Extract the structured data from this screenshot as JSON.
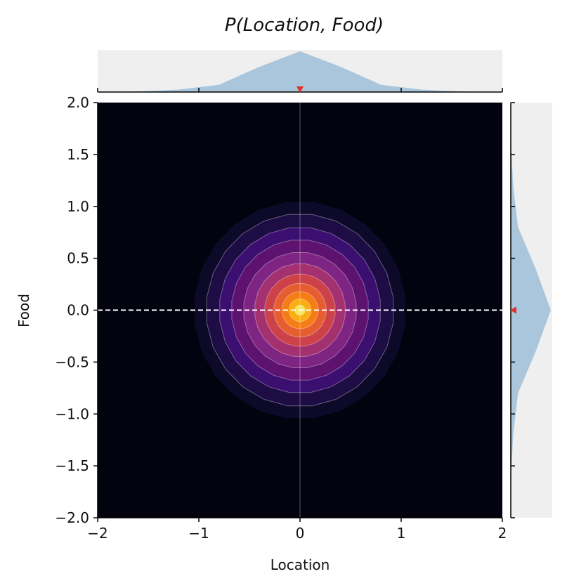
{
  "chart_data": {
    "type": "heatmap",
    "title": "P(Location, Food)",
    "xlabel": "Location",
    "ylabel": "Food",
    "xlim": [
      -2,
      2
    ],
    "ylim": [
      -2,
      2
    ],
    "xticks": [
      "−2",
      "−1",
      "0",
      "1",
      "2"
    ],
    "xtick_values": [
      -2,
      -1,
      0,
      1,
      2
    ],
    "yticks": [
      "2.0",
      "1.5",
      "1.0",
      "0.5",
      "0.0",
      "−0.5",
      "−1.0",
      "−1.5",
      "−2.0"
    ],
    "ytick_values": [
      2.0,
      1.5,
      1.0,
      0.5,
      0.0,
      -0.5,
      -1.0,
      -1.5,
      -2.0
    ],
    "colormap": "inferno",
    "marker": {
      "x": 0.0,
      "y": 0.0
    },
    "crosshair": {
      "vertical_x": 0.0,
      "horizontal_y": 0.0
    },
    "contour_levels": [
      {
        "radius": 1.05,
        "color": "#0d0a29"
      },
      {
        "radius": 0.93,
        "color": "#1e0c45"
      },
      {
        "radius": 0.8,
        "color": "#3b0f70"
      },
      {
        "radius": 0.68,
        "color": "#5c126e"
      },
      {
        "radius": 0.56,
        "color": "#7e2482"
      },
      {
        "radius": 0.45,
        "color": "#a3306f"
      },
      {
        "radius": 0.35,
        "color": "#cc4248"
      },
      {
        "radius": 0.26,
        "color": "#e65d2f"
      },
      {
        "radius": 0.18,
        "color": "#f57d15"
      },
      {
        "radius": 0.11,
        "color": "#fbae12"
      },
      {
        "radius": 0.05,
        "color": "#f3e55d"
      }
    ],
    "marginal_x": {
      "x": [
        -2.0,
        -1.6,
        -1.2,
        -0.8,
        -0.4,
        0.0,
        0.4,
        0.8,
        1.2,
        1.6,
        2.0
      ],
      "density": [
        0.0,
        0.01,
        0.06,
        0.18,
        0.62,
        1.0,
        0.62,
        0.18,
        0.06,
        0.01,
        0.0
      ]
    },
    "marginal_y": {
      "y": [
        -2.0,
        -1.6,
        -1.2,
        -0.8,
        -0.4,
        0.0,
        0.4,
        0.8,
        1.2,
        1.6,
        2.0
      ],
      "density": [
        0.0,
        0.01,
        0.06,
        0.18,
        0.62,
        1.0,
        0.62,
        0.18,
        0.06,
        0.01,
        0.0
      ]
    },
    "colors": {
      "background": "#03030f",
      "marginal_fill": "#a9c6dc",
      "marginal_panel": "#efefef",
      "marker": "#e8302a",
      "crosshair": "#ffffff"
    }
  }
}
